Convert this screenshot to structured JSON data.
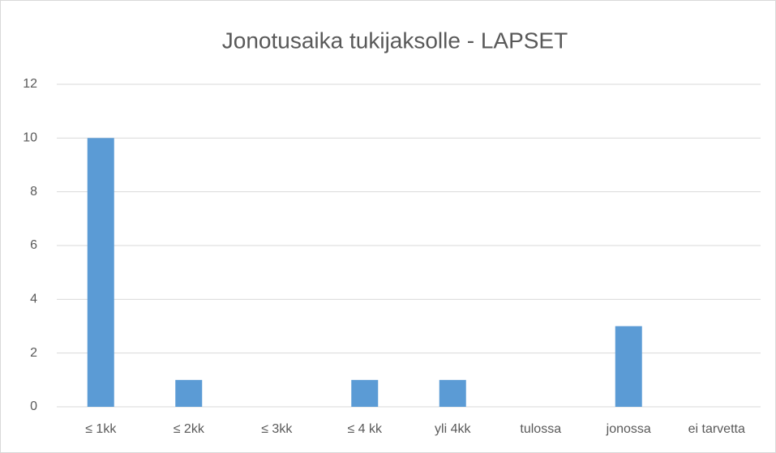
{
  "chart_data": {
    "type": "bar",
    "title": "Jonotusaika tukijaksolle - LAPSET",
    "categories": [
      "≤ 1kk",
      "≤ 2kk",
      "≤ 3kk",
      "≤ 4 kk",
      "yli 4kk",
      "tulossa",
      "jonossa",
      "ei tarvetta"
    ],
    "values": [
      10,
      1,
      0,
      1,
      1,
      0,
      3,
      0
    ],
    "color": "#5b9bd5",
    "ylim": [
      0,
      12
    ],
    "yticks": [
      0,
      2,
      4,
      6,
      8,
      10,
      12
    ],
    "grid": true
  }
}
